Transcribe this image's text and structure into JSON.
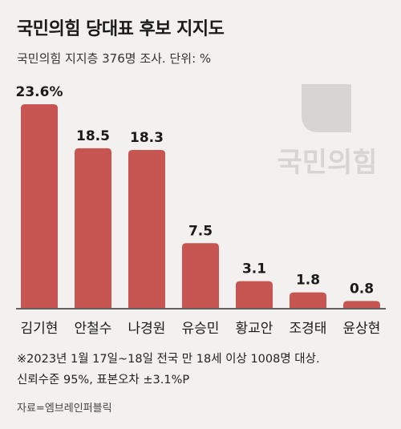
{
  "title": "국민의힘 당대표 후보 지지도",
  "subtitle": "국민의힘 지지층 376명 조사. 단위: %",
  "logo_text": "국민의힘",
  "notes": [
    "※2023년 1월 17일~18일 전국 만 18세 이상 1008명 대상.",
    "신뢰수준 95%, 표본오차 ±3.1%P"
  ],
  "source": "자료=엠브레인퍼블릭",
  "colors": {
    "bar": "#c75552",
    "baseline": "#333333",
    "logo": "#d6d5d3"
  },
  "chart_data": {
    "type": "bar",
    "categories": [
      "김기현",
      "안철수",
      "나경원",
      "유승민",
      "황교안",
      "조경태",
      "윤상현"
    ],
    "values": [
      23.6,
      18.5,
      18.3,
      7.5,
      3.1,
      1.8,
      0.8
    ],
    "value_labels": [
      "23.6%",
      "18.5",
      "18.3",
      "7.5",
      "3.1",
      "1.8",
      "0.8"
    ],
    "ylim": [
      0,
      23.6
    ],
    "grid": false,
    "legend": "none"
  }
}
